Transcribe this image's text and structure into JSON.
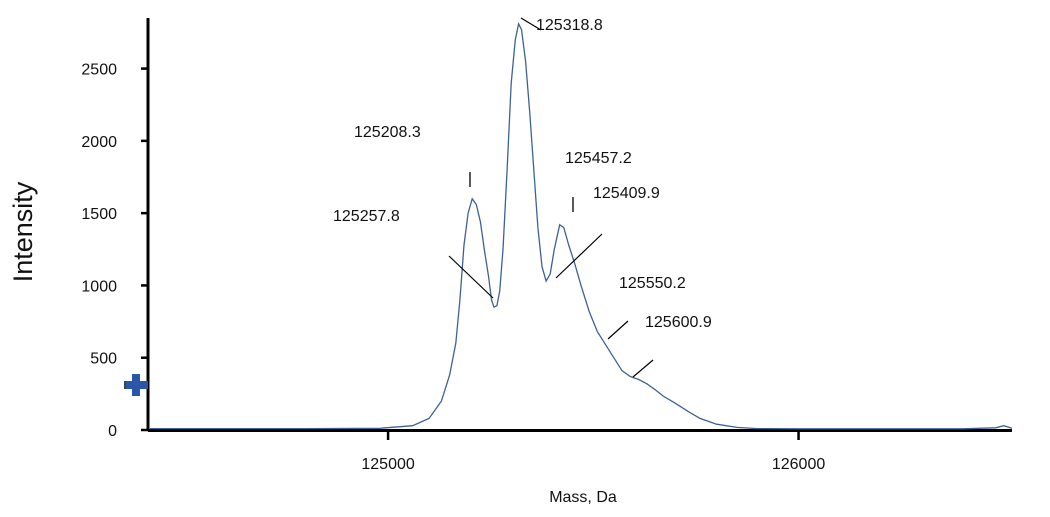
{
  "chart_data": {
    "type": "line",
    "xlabel": "Mass, Da",
    "ylabel": "Intensity",
    "xlim": [
      124420,
      126520
    ],
    "ylim": [
      0,
      2850
    ],
    "x_ticks": [
      125000,
      126000
    ],
    "y_ticks": [
      0,
      500,
      1000,
      1500,
      2000,
      2500
    ],
    "grid": false,
    "series": [
      {
        "color": "#3d6196",
        "points": [
          [
            124420,
            10
          ],
          [
            124600,
            10
          ],
          [
            124800,
            10
          ],
          [
            124980,
            12
          ],
          [
            125060,
            30
          ],
          [
            125100,
            80
          ],
          [
            125130,
            200
          ],
          [
            125150,
            380
          ],
          [
            125165,
            600
          ],
          [
            125175,
            900
          ],
          [
            125185,
            1280
          ],
          [
            125195,
            1500
          ],
          [
            125205,
            1600
          ],
          [
            125215,
            1560
          ],
          [
            125225,
            1440
          ],
          [
            125235,
            1240
          ],
          [
            125245,
            1060
          ],
          [
            125252,
            900
          ],
          [
            125258,
            850
          ],
          [
            125265,
            860
          ],
          [
            125272,
            960
          ],
          [
            125280,
            1250
          ],
          [
            125290,
            1800
          ],
          [
            125300,
            2400
          ],
          [
            125310,
            2700
          ],
          [
            125318,
            2810
          ],
          [
            125325,
            2770
          ],
          [
            125335,
            2550
          ],
          [
            125345,
            2200
          ],
          [
            125355,
            1800
          ],
          [
            125365,
            1400
          ],
          [
            125375,
            1130
          ],
          [
            125385,
            1030
          ],
          [
            125395,
            1080
          ],
          [
            125405,
            1250
          ],
          [
            125418,
            1420
          ],
          [
            125428,
            1400
          ],
          [
            125440,
            1280
          ],
          [
            125455,
            1150
          ],
          [
            125470,
            1000
          ],
          [
            125490,
            820
          ],
          [
            125510,
            680
          ],
          [
            125530,
            590
          ],
          [
            125550,
            500
          ],
          [
            125570,
            410
          ],
          [
            125590,
            370
          ],
          [
            125610,
            350
          ],
          [
            125630,
            320
          ],
          [
            125650,
            280
          ],
          [
            125670,
            235
          ],
          [
            125700,
            185
          ],
          [
            125730,
            130
          ],
          [
            125760,
            80
          ],
          [
            125800,
            40
          ],
          [
            125850,
            18
          ],
          [
            125900,
            10
          ],
          [
            126000,
            8
          ],
          [
            126200,
            8
          ],
          [
            126400,
            8
          ],
          [
            126480,
            15
          ],
          [
            126500,
            30
          ],
          [
            126520,
            12
          ]
        ]
      }
    ],
    "annotations": [
      {
        "text": "125318.8"
      },
      {
        "text": "125208.3"
      },
      {
        "text": "125257.8"
      },
      {
        "text": "125457.2"
      },
      {
        "text": "125409.9"
      },
      {
        "text": "125550.2"
      },
      {
        "text": "125600.9"
      }
    ]
  }
}
